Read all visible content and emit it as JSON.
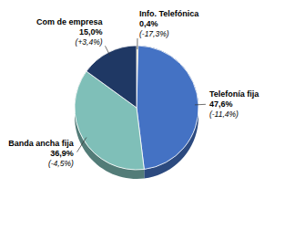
{
  "chart_data": {
    "type": "pie",
    "categories": [
      "Info. Telefónica",
      "Telefonía fija",
      "Banda ancha fija",
      "Com de empresa"
    ],
    "values": [
      0.4,
      47.6,
      36.9,
      15.0
    ],
    "value_labels": [
      "0,4%",
      "47,6%",
      "36,9%",
      "15,0%"
    ],
    "annotations": [
      "(-17,3%)",
      "(-11,4%)",
      "(-4,5%)",
      "(+3,4%)"
    ],
    "colors": [
      "#c8b86a",
      "#4472c4",
      "#7fbfb8",
      "#1f3864"
    ],
    "data_labels": true
  }
}
